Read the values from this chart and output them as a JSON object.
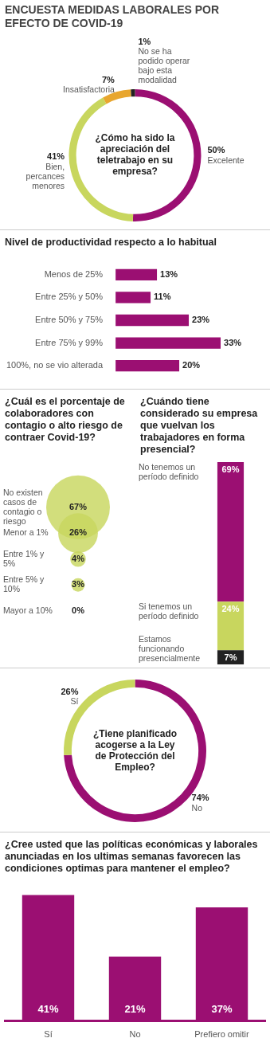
{
  "chart_data": [
    {
      "type": "donut",
      "title": "ENCUESTA MEDIDAS LABORALES POR EFECTO DE COVID-19",
      "annotations": [
        "¿Cómo ha sido la apreciación del teletrabajo en su empresa?"
      ],
      "categories": [
        "Excelente",
        "Bien, percances menores",
        "Insatisfactoria",
        "No se ha podido operar bajo esta modalidad"
      ],
      "values": [
        50,
        41,
        7,
        1
      ],
      "value_labels": [
        "50%",
        "41%",
        "7%",
        "1%"
      ],
      "colors": [
        "#9b0f72",
        "#c8d65e",
        "#e8a62e",
        "#222222"
      ]
    },
    {
      "type": "bar",
      "orientation": "horizontal",
      "title": "Nivel de productividad respecto a lo habitual",
      "categories": [
        "Menos de 25%",
        "Entre 25% y 50%",
        "Entre 50% y 75%",
        "Entre 75% y 99%",
        "100%, no se vio alterada"
      ],
      "values": [
        13,
        11,
        23,
        33,
        20
      ],
      "value_labels": [
        "13%",
        "11%",
        "23%",
        "33%",
        "20%"
      ],
      "color": "#9b0f72"
    },
    {
      "type": "other",
      "title": "¿Cuál es el porcentaje de colaboradores con contagio o alto riesgo de contraer Covid-19?",
      "categories": [
        "No existen casos de contagio o riesgo",
        "Menor a 1%",
        "Entre 1% y 5%",
        "Entre 5% y 10%",
        "Mayor a 10%"
      ],
      "values": [
        67,
        26,
        4,
        3,
        0
      ],
      "value_labels": [
        "67%",
        "26%",
        "4%",
        "3%",
        "0%"
      ],
      "color": "#c8d65e"
    },
    {
      "type": "bar",
      "stacked": true,
      "title": "¿Cuándo tiene considerado su empresa que vuelvan los trabajadores en forma presencial?",
      "categories": [
        null
      ],
      "series": [
        {
          "name": "Estamos funcionando presencialmente",
          "color": "#222222",
          "values": [
            7
          ],
          "value_labels": [
            "7%"
          ]
        },
        {
          "name": "Si tenemos un período definido",
          "color": "#c8d65e",
          "values": [
            24
          ],
          "value_labels": [
            "24%"
          ]
        },
        {
          "name": "No tenemos un período definido",
          "color": "#9b0f72",
          "values": [
            69
          ],
          "value_labels": [
            "69%"
          ]
        }
      ]
    },
    {
      "type": "donut",
      "annotations": [
        "¿Tiene planificado acogerse a la Ley de Protección del Empleo?"
      ],
      "categories": [
        "No",
        "Sí"
      ],
      "values": [
        74,
        26
      ],
      "value_labels": [
        "74%",
        "26%"
      ],
      "colors": [
        "#9b0f72",
        "#c8d65e"
      ]
    },
    {
      "type": "bar",
      "title": "¿Cree usted que las políticas económicas y laborales anunciadas en los ultimas semanas favorecen las condiciones optimas para mantener el empleo?",
      "categories": [
        "Sí",
        "No",
        "Prefiero omitir"
      ],
      "values": [
        41,
        21,
        37
      ],
      "value_labels": [
        "41%",
        "21%",
        "37%"
      ],
      "color": "#9b0f72"
    }
  ]
}
